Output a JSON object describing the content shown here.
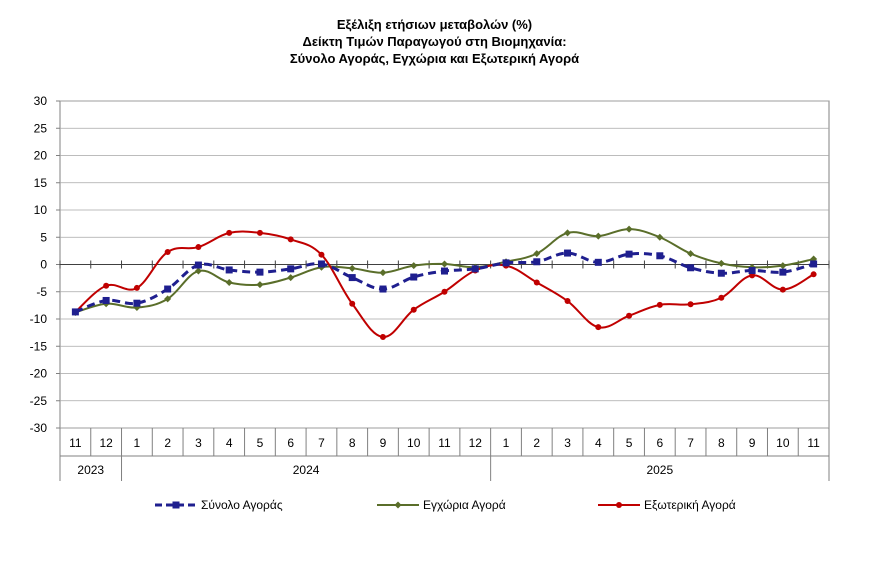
{
  "chart_data": {
    "type": "line",
    "title_lines": [
      "Εξέλιξη ετήσιων μεταβολών (%)",
      "Δείκτη Τιμών Παραγωγού στη Βιομηχανία:",
      "Σύνολο Αγοράς, Εγχώρια και Εξωτερική Αγορά"
    ],
    "categories": [
      "11",
      "12",
      "1",
      "2",
      "3",
      "4",
      "5",
      "6",
      "7",
      "8",
      "9",
      "10",
      "11",
      "12",
      "1",
      "2",
      "3",
      "4",
      "5",
      "6",
      "7",
      "8",
      "9",
      "10",
      "11"
    ],
    "year_groups": [
      {
        "label": "2023",
        "count": 2
      },
      {
        "label": "2024",
        "count": 12
      },
      {
        "label": "2025",
        "count": 11
      }
    ],
    "ylim": [
      -30,
      30
    ],
    "yticks": [
      "30",
      "25",
      "20",
      "15",
      "10",
      "5",
      "0",
      "-5",
      "-10",
      "-15",
      "-20",
      "-25",
      "-30"
    ],
    "series": [
      {
        "name": "Σύνολο Αγοράς",
        "color": "#1f1f8f",
        "style": "dashed",
        "marker": "square",
        "values": [
          -8.7,
          -6.6,
          -7.1,
          -4.5,
          -0.1,
          -1.0,
          -1.4,
          -0.8,
          0.1,
          -2.4,
          -4.5,
          -2.3,
          -1.2,
          -0.8,
          0.3,
          0.5,
          2.1,
          0.4,
          1.9,
          1.6,
          -0.6,
          -1.6,
          -1.1,
          -1.4,
          0.1
        ]
      },
      {
        "name": "Εγχώρια Αγορά",
        "color": "#5a6e2a",
        "style": "solid",
        "marker": "diamond",
        "values": [
          -8.8,
          -7.2,
          -7.9,
          -6.3,
          -1.2,
          -3.3,
          -3.7,
          -2.4,
          -0.5,
          -0.7,
          -1.5,
          -0.2,
          0.1,
          -0.5,
          0.5,
          2.0,
          5.8,
          5.2,
          6.5,
          5.0,
          2.0,
          0.2,
          -0.5,
          -0.2,
          1.0
        ]
      },
      {
        "name": "Εξωτερική Αγορά",
        "color": "#c00000",
        "style": "solid",
        "marker": "circle",
        "values": [
          -8.7,
          -3.9,
          -4.3,
          2.3,
          3.2,
          5.8,
          5.8,
          4.6,
          1.8,
          -7.2,
          -13.3,
          -8.3,
          -5.0,
          -1.1,
          -0.2,
          -3.3,
          -6.7,
          -11.5,
          -9.4,
          -7.4,
          -7.3,
          -6.1,
          -2.0,
          -4.6,
          -1.8
        ]
      }
    ],
    "legend_position": "bottom"
  }
}
